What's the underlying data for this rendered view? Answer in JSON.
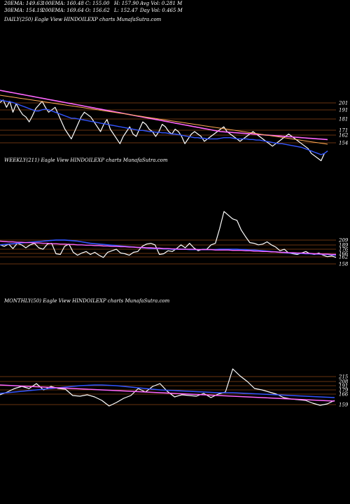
{
  "header": {
    "row1": [
      "20EMA: 149.63",
      "100EMA: 160.48",
      "C: 155.00",
      "H: 157.90",
      "Avg Vol: 0.281 M"
    ],
    "row2": [
      "30EMA: 154.19",
      "200EMA: 169.64",
      "O: 156.62",
      "L: 152.47",
      "Day Vol: 0.465 M"
    ]
  },
  "panels": [
    {
      "label": "DAILY(250) Eagle  View  HINDOILEXP charts MunafaSutra.com"
    },
    {
      "label": "WEEKLY(211) Eagle  View  HINDOILEXP charts MunafaSutra.com"
    },
    {
      "label": "MONTHLY(50) Eagle  View  HINDOILEXP charts MunafaSutra.com"
    }
  ],
  "colors": {
    "background": "#000000",
    "price": "#ffffff",
    "ema_short": "#3355ff",
    "ema_mid": "#ff66ff",
    "ema_long": "#ffaa55",
    "level_line": "#d2691e"
  },
  "chart_data": [
    {
      "type": "line",
      "ylim": [
        140,
        215
      ],
      "tick_labels": [
        "201",
        "191",
        "181",
        "171",
        "162",
        "154"
      ],
      "series": [
        {
          "values": [
            194,
            196,
            190,
            195,
            186,
            193,
            188,
            184,
            182,
            178,
            183,
            189,
            192,
            195,
            190,
            186,
            188,
            190,
            184,
            178,
            172,
            168,
            164,
            170,
            176,
            182,
            186,
            184,
            182,
            178,
            174,
            170,
            176,
            180,
            172,
            168,
            164,
            160,
            166,
            170,
            174,
            168,
            166,
            172,
            178,
            176,
            172,
            170,
            166,
            170,
            176,
            174,
            170,
            168,
            172,
            170,
            166,
            160,
            164,
            168,
            170,
            168,
            166,
            162,
            164,
            166,
            168,
            170,
            172,
            174,
            170,
            168,
            166,
            164,
            162,
            164,
            166,
            168,
            170,
            168,
            166,
            164,
            162,
            160,
            158,
            160,
            162,
            164,
            166,
            168,
            166,
            164,
            162,
            160,
            158,
            156,
            152,
            150,
            148,
            146,
            152,
            154
          ]
        },
        {
          "values": [
            196,
            195.5,
            195,
            194.5,
            194,
            193,
            192,
            191,
            190,
            189,
            188,
            187,
            187,
            188,
            188.5,
            188,
            187,
            186,
            185,
            184,
            183,
            182,
            181,
            181,
            180.5,
            180,
            179.5,
            179,
            178.5,
            178,
            177.5,
            177,
            176.5,
            176,
            175.5,
            175,
            174.5,
            174,
            173.5,
            173,
            172.5,
            172,
            171.5,
            171,
            171,
            170.5,
            170,
            170,
            169.5,
            169.5,
            169,
            169,
            168.5,
            168,
            168,
            167.5,
            167,
            166.5,
            166,
            165.5,
            165,
            165,
            164.5,
            164.5,
            164,
            164,
            164,
            164,
            164.5,
            165,
            165,
            165,
            164.5,
            164,
            164,
            164,
            164,
            163.5,
            163.5,
            163,
            163,
            162.5,
            162,
            161.5,
            161,
            160.5,
            160,
            160,
            159.5,
            159,
            158.5,
            158,
            157.5,
            157,
            156,
            155,
            154,
            153,
            152,
            151,
            152,
            154
          ]
        },
        {
          "values": [
            204,
            203.5,
            203,
            202.5,
            202,
            201.5,
            201,
            200.5,
            200,
            199.5,
            199,
            198.5,
            198,
            197.5,
            197,
            196.5,
            196,
            195.5,
            195,
            194.5,
            194,
            193.5,
            193,
            192.5,
            192,
            191.5,
            191,
            190.5,
            190,
            189.5,
            189,
            188.5,
            188,
            187.5,
            187,
            186.5,
            186,
            185.5,
            185,
            184.5,
            184,
            183.5,
            183,
            182.5,
            182,
            181.5,
            181,
            180.5,
            180,
            179.5,
            179,
            178.5,
            178,
            177.5,
            177,
            176.5,
            176,
            175.5,
            175,
            174.5,
            174,
            173.5,
            173,
            172.5,
            172,
            171.5,
            171,
            170.5,
            170,
            169.8,
            169.6,
            169.4,
            169.2,
            169,
            168.8,
            168.6,
            168.4,
            168.2,
            168,
            167.8,
            167.6,
            167.4,
            167.2,
            167,
            166.8,
            166.6,
            166.4,
            166.2,
            166,
            165.8,
            165.6,
            165.4,
            165.2,
            165,
            164.8,
            164.6,
            164.4,
            164.2,
            164,
            163.8,
            163.6,
            163.4
          ]
        },
        {
          "values": [
            200,
            199.6,
            199.2,
            198.8,
            198.4,
            198,
            197.6,
            197.2,
            196.8,
            196.4,
            196,
            195.6,
            195.2,
            194.8,
            194.4,
            194,
            193.6,
            193.2,
            192.8,
            192.4,
            192,
            191.6,
            191.2,
            190.8,
            190.4,
            190,
            189.6,
            189.2,
            188.8,
            188.4,
            188,
            187.6,
            187.2,
            186.8,
            186.4,
            186,
            185.6,
            185.2,
            184.8,
            184.4,
            184,
            183.6,
            183.2,
            182.8,
            182.4,
            182,
            181.6,
            181.2,
            180.8,
            180.4,
            180,
            179.6,
            179.2,
            178.8,
            178.4,
            178,
            177.6,
            177.2,
            176.8,
            176.4,
            176,
            175.6,
            175.2,
            174.8,
            174.4,
            174,
            173.6,
            173.2,
            172.8,
            172.4,
            172,
            171.6,
            171.2,
            170.8,
            170.4,
            170,
            169.6,
            169.2,
            168.8,
            168.4,
            168,
            167.6,
            167.2,
            166.8,
            166.4,
            166,
            165.6,
            165.2,
            164.8,
            164.4,
            164,
            163.6,
            163.2,
            162.8,
            162.4,
            162,
            161.6,
            161.2,
            160.8,
            160.4,
            160,
            159.6
          ]
        }
      ]
    },
    {
      "type": "line",
      "ylim": [
        120,
        290
      ],
      "tick_labels": [
        "209",
        "189",
        "176",
        "166",
        "162",
        "158"
      ],
      "series": [
        {
          "values": [
            196,
            192,
            198,
            186,
            200,
            196,
            188,
            196,
            200,
            188,
            184,
            198,
            200,
            172,
            170,
            192,
            198,
            176,
            168,
            174,
            178,
            170,
            176,
            168,
            162,
            176,
            180,
            184,
            174,
            172,
            168,
            176,
            178,
            192,
            198,
            200,
            196,
            170,
            172,
            180,
            178,
            186,
            196,
            188,
            200,
            188,
            180,
            184,
            184,
            196,
            200,
            240,
            286,
            276,
            266,
            262,
            236,
            218,
            202,
            200,
            196,
            198,
            204,
            196,
            190,
            180,
            184,
            174,
            172,
            170,
            174,
            178,
            172,
            170,
            174,
            168,
            164,
            166,
            162
          ]
        },
        {
          "values": [
            196,
            197,
            198,
            199,
            200,
            201,
            202,
            203,
            204,
            205,
            206,
            207,
            208,
            209,
            209,
            209,
            208,
            207,
            206,
            204,
            202,
            200,
            199,
            198,
            197,
            196,
            195,
            194,
            193,
            192,
            191,
            190,
            189,
            188,
            187,
            186,
            186,
            186,
            185,
            185,
            184,
            184,
            184,
            184,
            183,
            183,
            183,
            183,
            183,
            183,
            183,
            184,
            184,
            184,
            184,
            184,
            183,
            183,
            182,
            182,
            181,
            180,
            179,
            178,
            177,
            176,
            175,
            174,
            174,
            173,
            173,
            172,
            172,
            171,
            171,
            170,
            170,
            169,
            168
          ]
        },
        {
          "values": [
            206,
            205,
            204,
            204,
            203,
            203,
            202,
            202,
            201,
            201,
            200,
            200,
            199,
            199,
            198,
            198,
            197,
            197,
            196,
            196,
            195,
            195,
            194,
            194,
            193,
            193,
            192,
            192,
            191,
            191,
            190,
            190,
            189,
            189,
            188,
            188,
            187,
            187,
            186,
            186,
            185,
            185,
            184,
            184,
            184,
            184,
            183,
            183,
            183,
            183,
            182,
            182,
            182,
            182,
            181,
            181,
            181,
            180,
            180,
            179,
            179,
            178,
            178,
            177,
            177,
            176,
            176,
            175,
            175,
            174,
            174,
            173,
            173,
            172,
            172,
            171,
            171,
            170,
            170
          ]
        }
      ]
    },
    {
      "type": "line",
      "ylim": [
        120,
        300
      ],
      "tick_labels": [
        "215",
        "208",
        "191",
        "179",
        "166",
        "159"
      ],
      "series": [
        {
          "values": [
            182,
            190,
            200,
            206,
            200,
            214,
            196,
            206,
            200,
            198,
            180,
            178,
            182,
            176,
            166,
            150,
            160,
            172,
            180,
            200,
            190,
            206,
            214,
            192,
            176,
            182,
            180,
            178,
            186,
            174,
            184,
            190,
            256,
            236,
            220,
            200,
            196,
            190,
            184,
            174,
            170,
            168,
            166,
            158,
            152,
            156,
            166
          ]
        },
        {
          "values": [
            186,
            188,
            190,
            192,
            194,
            196,
            198,
            200,
            202,
            204,
            206,
            208,
            209,
            210,
            210,
            209,
            208,
            206,
            204,
            202,
            200,
            198,
            196,
            195,
            194,
            193,
            192,
            191,
            190,
            189,
            188,
            188,
            188,
            187,
            186,
            185,
            184,
            183,
            182,
            181,
            180,
            179,
            178,
            177,
            176,
            175,
            174
          ]
        },
        {
          "values": [
            210,
            209,
            208,
            207,
            206,
            205,
            204,
            203,
            202,
            201,
            200,
            199,
            198,
            197,
            196,
            195,
            194,
            193,
            192,
            191,
            190,
            189,
            188,
            187,
            186,
            185,
            184,
            183,
            182,
            181,
            180,
            179,
            178,
            177,
            176,
            175,
            174,
            173,
            172,
            171,
            170,
            169,
            168,
            167,
            166,
            165,
            164
          ]
        }
      ]
    }
  ]
}
